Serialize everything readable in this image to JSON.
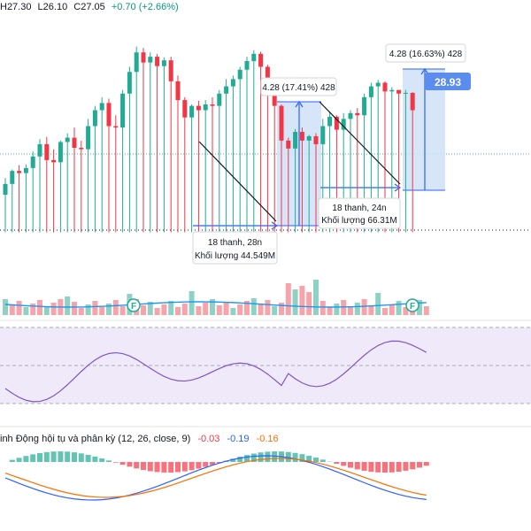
{
  "header": {
    "high_label": "H27.30",
    "low_label": "L26.10",
    "close_label": "C27.05",
    "change_label": "+0.70 (+2.66%)",
    "change_color": "#089981"
  },
  "colors": {
    "up": "#22ab94",
    "down": "#f23645",
    "vol_up": "#8fd1c4",
    "vol_down": "#f6a3a9",
    "measure_fill": "#cfe0f7",
    "measure_line": "#2962ff",
    "price_label_bg": "#5b8def",
    "rsi": "#7e57c2",
    "rsi_band": "#efe9f9",
    "macd_line": "#2962ff",
    "signal_line": "#ff6d00",
    "volume_ma": "#2196f3",
    "financials_badge": "#22ab94"
  },
  "annotations": {
    "measure_1": "4.28 (17.41%) 428",
    "measure_2": "4.28 (16.63%) 428",
    "price_label": "28.93",
    "range_1_bars": "18 thanh, 28n",
    "range_1_volume": "Khối lượng 44.549M",
    "range_2_bars": "18 thanh, 24n",
    "range_2_volume": "Khối lượng 66.31M",
    "financials_badge_1": "F",
    "financials_badge_2": "F"
  },
  "macd": {
    "title": "inh Động hội tụ và phân kỳ (12, 26, close, 9)",
    "hist_value": "-0.03",
    "macd_value": "-0.19",
    "signal_value": "-0.16",
    "hist_color": "#f23645",
    "macd_color": "#2962ff",
    "signal_color": "#ff6d00"
  },
  "chart_data": {
    "type": "candlestick",
    "icons": [
      "trend-line-icon",
      "date-range-icon",
      "price-range-icon",
      "financials-badge-icon"
    ],
    "candles": [
      [
        5,
        55,
        78,
        3,
        70
      ],
      [
        5,
        70,
        90,
        3,
        88
      ],
      [
        5,
        88,
        96,
        3,
        85
      ],
      [
        5,
        85,
        97,
        3,
        92
      ],
      [
        5,
        92,
        115,
        3,
        108
      ],
      [
        5,
        108,
        132,
        3,
        125
      ],
      [
        5,
        125,
        135,
        3,
        103
      ],
      [
        5,
        103,
        118,
        3,
        100
      ],
      [
        5,
        100,
        130,
        3,
        128
      ],
      [
        5,
        128,
        140,
        3,
        134
      ],
      [
        5,
        134,
        148,
        3,
        120
      ],
      [
        5,
        120,
        130,
        3,
        118
      ],
      [
        5,
        118,
        160,
        3,
        150
      ],
      [
        5,
        150,
        178,
        3,
        172
      ],
      [
        5,
        172,
        190,
        3,
        182
      ],
      [
        5,
        182,
        188,
        3,
        150
      ],
      [
        5,
        150,
        165,
        3,
        148
      ],
      [
        5,
        148,
        200,
        3,
        195
      ],
      [
        5,
        195,
        232,
        3,
        225
      ],
      [
        5,
        225,
        260,
        3,
        252
      ],
      [
        5,
        252,
        258,
        3,
        238
      ],
      [
        5,
        238,
        252,
        3,
        246
      ],
      [
        5,
        246,
        250,
        3,
        233
      ],
      [
        5,
        233,
        245,
        3,
        241
      ],
      [
        5,
        241,
        246,
        3,
        212
      ],
      [
        5,
        212,
        220,
        3,
        186
      ],
      [
        5,
        186,
        190,
        3,
        162
      ],
      [
        5,
        162,
        180,
        3,
        178
      ],
      [
        5,
        178,
        185,
        3,
        172
      ],
      [
        5,
        172,
        186,
        3,
        180
      ],
      [
        5,
        180,
        190,
        3,
        178
      ],
      [
        5,
        178,
        200,
        3,
        195
      ],
      [
        5,
        195,
        215,
        3,
        205
      ],
      [
        5,
        205,
        220,
        3,
        215
      ],
      [
        5,
        215,
        232,
        3,
        228
      ],
      [
        5,
        228,
        246,
        3,
        240
      ],
      [
        5,
        240,
        255,
        3,
        250
      ],
      [
        5,
        250,
        253,
        3,
        232
      ],
      [
        5,
        232,
        235,
        3,
        200
      ],
      [
        5,
        200,
        202,
        3,
        178
      ],
      [
        5,
        178,
        180,
        3,
        130
      ],
      [
        5,
        130,
        134,
        3,
        119
      ],
      [
        5,
        119,
        146,
        3,
        142
      ],
      [
        5,
        142,
        148,
        3,
        130
      ],
      [
        5,
        130,
        138,
        3,
        136
      ],
      [
        5,
        136,
        140,
        3,
        125
      ],
      [
        5,
        125,
        160,
        3,
        150
      ],
      [
        5,
        150,
        170,
        3,
        163
      ],
      [
        5,
        163,
        165,
        3,
        145
      ],
      [
        5,
        145,
        168,
        3,
        160
      ],
      [
        5,
        160,
        172,
        3,
        168
      ],
      [
        5,
        168,
        175,
        3,
        165
      ],
      [
        5,
        165,
        195,
        3,
        190
      ],
      [
        5,
        190,
        210,
        3,
        205
      ],
      [
        5,
        205,
        214,
        3,
        210
      ],
      [
        5,
        210,
        212,
        3,
        198
      ],
      [
        5,
        198,
        204,
        3,
        200
      ],
      [
        5,
        200,
        200,
        3,
        195
      ],
      [
        5,
        195,
        200,
        3,
        196
      ],
      [
        5,
        196,
        197,
        3,
        172
      ]
    ],
    "candle_fields": [
      "width",
      "open",
      "high",
      "low",
      "close"
    ],
    "rsi": [],
    "volume": [],
    "macd_hist": []
  }
}
